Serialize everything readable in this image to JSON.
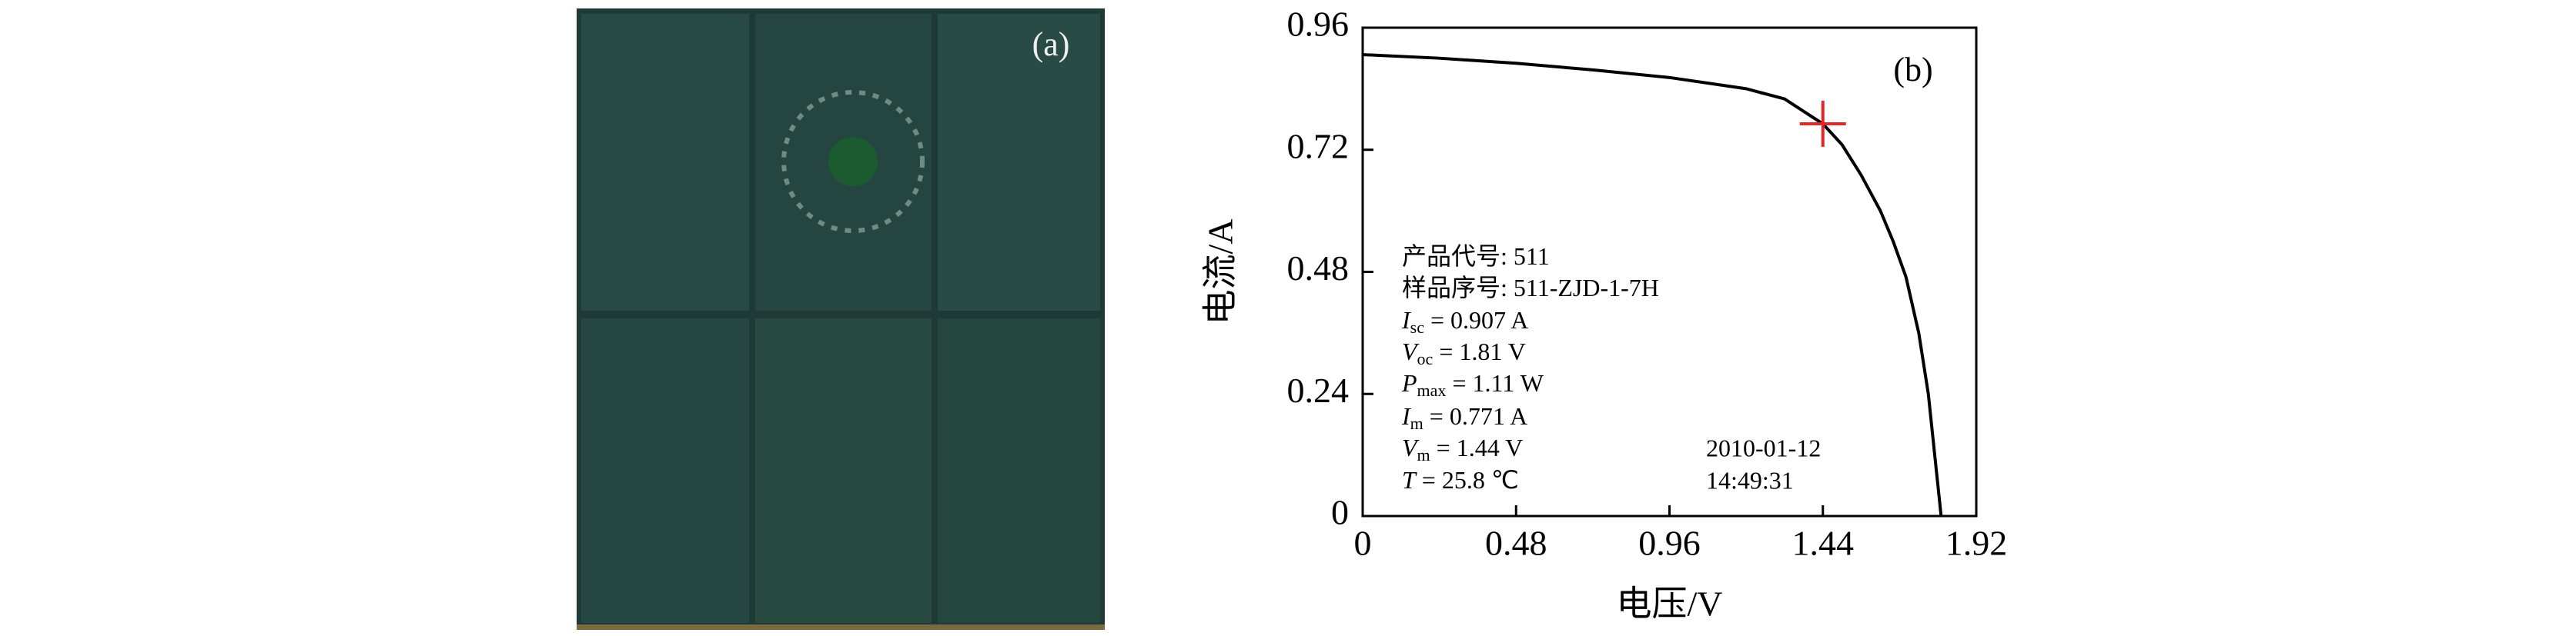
{
  "photo": {
    "label": "(a)"
  },
  "chart_data": {
    "type": "line",
    "panel_label": "(b)",
    "x_label": "电压/V",
    "y_label": "电流/A",
    "xlim": [
      0,
      1.92
    ],
    "xticks": [
      0,
      0.48,
      0.96,
      1.44,
      1.92
    ],
    "ylim": [
      0,
      0.96
    ],
    "yticks": [
      0,
      0.24,
      0.48,
      0.72,
      0.96
    ],
    "series": [
      {
        "color": "#000000",
        "x": [
          0,
          0.24,
          0.48,
          0.72,
          0.96,
          1.2,
          1.32,
          1.44,
          1.5,
          1.56,
          1.62,
          1.66,
          1.7,
          1.74,
          1.77,
          1.79,
          1.81
        ],
        "values": [
          0.907,
          0.9,
          0.89,
          0.877,
          0.862,
          0.84,
          0.82,
          0.771,
          0.73,
          0.67,
          0.6,
          0.54,
          0.47,
          0.36,
          0.24,
          0.12,
          0
        ]
      }
    ],
    "marker": {
      "x": 1.44,
      "y": 0.771,
      "color": "#e0282a"
    },
    "annotations": [
      {
        "text": "产品代号: 511"
      },
      {
        "text": "样品序号: 511-ZJD-1-7H"
      },
      {
        "symbol": "I",
        "sub": "sc",
        "text": " = 0.907 A"
      },
      {
        "symbol": "V",
        "sub": "oc",
        "text": " = 1.81 V"
      },
      {
        "symbol": "P",
        "sub": "max",
        "text": " = 1.11 W"
      },
      {
        "symbol": "I",
        "sub": "m",
        "text": " = 0.771 A"
      },
      {
        "symbol": "V",
        "sub": "m",
        "text": " = 1.44 V"
      },
      {
        "symbol": "T",
        "text": " = 25.8 ℃"
      }
    ],
    "date": "2010-01-12",
    "time": "14:49:31"
  }
}
